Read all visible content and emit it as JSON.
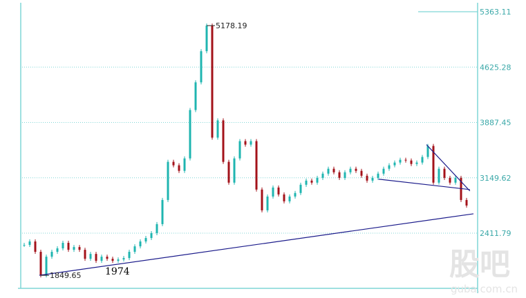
{
  "chart_data": {
    "type": "candlestick",
    "title": "",
    "xlabel": "",
    "ylabel": "",
    "y_ticks": [
      "5363.11",
      "4625.28",
      "3887.45",
      "3149.62",
      "2411.79"
    ],
    "y_tick_values": [
      5363.11,
      4625.28,
      3887.45,
      3149.62,
      2411.79
    ],
    "grid": true,
    "colors": {
      "up": "#1fb5b0",
      "down": "#a3121a",
      "grid": "#7fd6d6",
      "axis": "#7fd6d6",
      "trendline": "#1a1a8a"
    },
    "closes": [
      2255,
      2301,
      2163,
      1850,
      2098,
      2163,
      2209,
      2283,
      2190,
      2227,
      2190,
      2070,
      2135,
      2043,
      2098,
      2070,
      2043,
      2061,
      2080,
      2163,
      2236,
      2301,
      2347,
      2412,
      2532,
      2854,
      3362,
      3316,
      3242,
      3408,
      4053,
      4422,
      4837,
      5178,
      3685,
      3915,
      3362,
      3085,
      3408,
      3638,
      3592,
      3638,
      2993,
      2716,
      2900,
      3020,
      2928,
      2836,
      2900,
      2947,
      3057,
      3112,
      3085,
      3149,
      3205,
      3270,
      3223,
      3149,
      3223,
      3270,
      3242,
      3177,
      3112,
      3149,
      3205,
      3270,
      3316,
      3353,
      3390,
      3380,
      3334,
      3353,
      3427,
      3574,
      3085,
      3270,
      3149,
      3085,
      3149,
      2854,
      2780
    ],
    "annotations": [
      {
        "text": "5178.19",
        "index": 33,
        "value": 5178.19
      },
      {
        "text": "1849.65",
        "index": 3,
        "value": 1849.65
      },
      {
        "text": "1974",
        "index": 15,
        "value": 1974
      }
    ],
    "trendlines": [
      {
        "from": [
          2.75,
          1850
        ],
        "to": [
          81.25,
          2670
        ]
      },
      {
        "from": [
          64.1,
          3131
        ],
        "to": [
          80.6,
          2993
        ]
      },
      {
        "from": [
          72.75,
          3592
        ],
        "to": [
          80.6,
          2974
        ]
      }
    ]
  },
  "watermark": {
    "logo": "股吧",
    "site": "guba.com.cn"
  }
}
